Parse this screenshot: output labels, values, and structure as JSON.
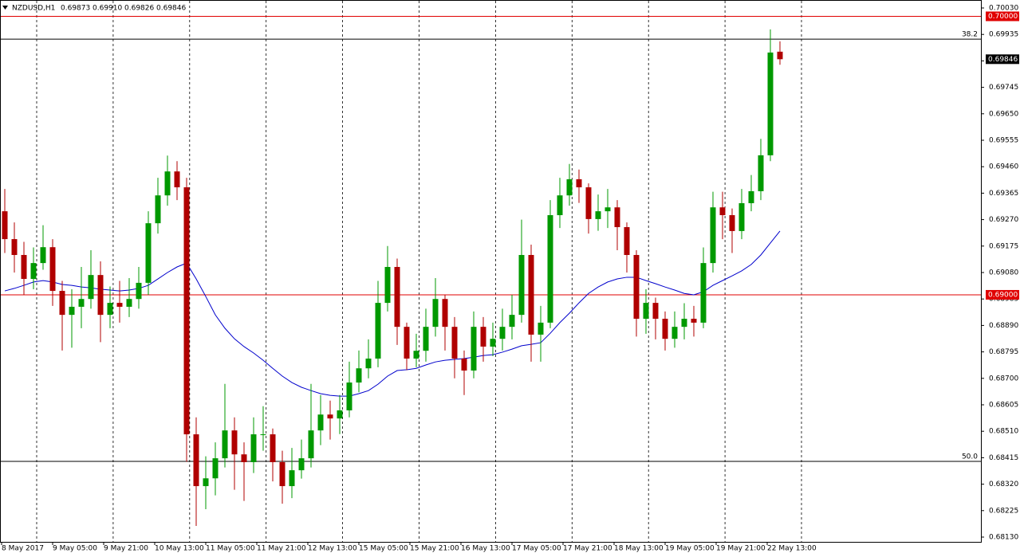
{
  "chart_data": {
    "type": "candlestick",
    "symbol": "NZDUSD,H1",
    "header_ohlc": [
      "0.69873",
      "0.69910",
      "0.69826",
      "0.69846"
    ],
    "bull_color": "#009900",
    "bear_color": "#b00000",
    "ylim": [
      0.6813,
      0.7003
    ],
    "yticks": [
      {
        "value": 0.7003,
        "label": "0.70030"
      },
      {
        "value": 0.69935,
        "label": "0.69935"
      },
      {
        "value": 0.6984,
        "label": "0.69840"
      },
      {
        "value": 0.69745,
        "label": "0.69745"
      },
      {
        "value": 0.6965,
        "label": "0.69650"
      },
      {
        "value": 0.69555,
        "label": "0.69555"
      },
      {
        "value": 0.6946,
        "label": "0.69460"
      },
      {
        "value": 0.69365,
        "label": "0.69365"
      },
      {
        "value": 0.6927,
        "label": "0.69270"
      },
      {
        "value": 0.69175,
        "label": "0.69175"
      },
      {
        "value": 0.6908,
        "label": "0.69080"
      },
      {
        "value": 0.68985,
        "label": "0.68985"
      },
      {
        "value": 0.6889,
        "label": "0.68890"
      },
      {
        "value": 0.68795,
        "label": "0.68795"
      },
      {
        "value": 0.687,
        "label": "0.68700"
      },
      {
        "value": 0.68605,
        "label": "0.68605"
      },
      {
        "value": 0.6851,
        "label": "0.68510"
      },
      {
        "value": 0.68415,
        "label": "0.68415"
      },
      {
        "value": 0.6832,
        "label": "0.68320"
      },
      {
        "value": 0.68225,
        "label": "0.68225"
      },
      {
        "value": 0.6813,
        "label": "0.68130"
      }
    ],
    "xtick_labels": [
      "8 May 2017",
      "9 May 05:00",
      "9 May 21:00",
      "10 May 13:00",
      "11 May 05:00",
      "11 May 21:00",
      "12 May 13:00",
      "15 May 05:00",
      "15 May 21:00",
      "16 May 13:00",
      "17 May 05:00",
      "17 May 21:00",
      "18 May 13:00",
      "19 May 05:00",
      "19 May 21:00",
      "22 May 13:00"
    ],
    "levels": [
      {
        "value": 0.7,
        "label": "0.70000",
        "color": "#e00000"
      },
      {
        "value": 0.69,
        "label": "0.69000",
        "color": "#e00000"
      }
    ],
    "fib_levels": [
      {
        "value": 0.69918,
        "label": "38.2"
      },
      {
        "value": 0.68402,
        "label": "50.0"
      }
    ],
    "last_price": {
      "value": 0.69846,
      "label": "0.69846"
    },
    "open": [
      0.693,
      0.692,
      0.69143,
      0.69057,
      0.69114,
      0.69171,
      0.69014,
      0.68928,
      0.68957,
      0.68985,
      0.69071,
      0.68928,
      0.68971,
      0.68957,
      0.68985,
      0.69043,
      0.69257,
      0.69357,
      0.69443,
      0.69386,
      0.68499,
      0.68313,
      0.68341,
      0.68413,
      0.68513,
      0.68427,
      0.68399,
      0.68499,
      0.68499,
      0.68399,
      0.68313,
      0.6837,
      0.68413,
      0.68513,
      0.6857,
      0.68556,
      0.68585,
      0.68685,
      0.68736,
      0.68771,
      0.68971,
      0.691,
      0.68885,
      0.68771,
      0.68799,
      0.68885,
      0.68985,
      0.68885,
      0.68771,
      0.68728,
      0.68885,
      0.68814,
      0.68842,
      0.68885,
      0.68928,
      0.69143,
      0.68857,
      0.689,
      0.69286,
      0.69357,
      0.69415,
      0.69386,
      0.69272,
      0.693,
      0.69314,
      0.69243,
      0.69143,
      0.68914,
      0.68971,
      0.68914,
      0.68842,
      0.68885,
      0.68914,
      0.689,
      0.69114,
      0.69314,
      0.69286,
      0.69229,
      0.69329,
      0.69372,
      0.69501,
      0.69873
    ],
    "high": [
      0.6938,
      0.6926,
      0.6919,
      0.6917,
      0.6925,
      0.692,
      0.6905,
      0.6902,
      0.691,
      0.6916,
      0.6912,
      0.6903,
      0.6905,
      0.6906,
      0.691,
      0.693,
      0.6942,
      0.695,
      0.6948,
      0.6942,
      0.6856,
      0.6842,
      0.6847,
      0.6868,
      0.6856,
      0.6847,
      0.6856,
      0.686,
      0.6852,
      0.6844,
      0.6845,
      0.6848,
      0.6868,
      0.6864,
      0.6862,
      0.6864,
      0.6876,
      0.688,
      0.6884,
      0.6905,
      0.69175,
      0.6913,
      0.689,
      0.6886,
      0.6895,
      0.6906,
      0.69,
      0.6892,
      0.688,
      0.6894,
      0.6892,
      0.689,
      0.6895,
      0.69,
      0.6927,
      0.6918,
      0.6896,
      0.6934,
      0.6942,
      0.6947,
      0.6945,
      0.694,
      0.6936,
      0.6938,
      0.6934,
      0.6926,
      0.6916,
      0.6902,
      0.6899,
      0.6894,
      0.6894,
      0.6897,
      0.6896,
      0.6917,
      0.6937,
      0.6937,
      0.6931,
      0.6938,
      0.6943,
      0.6956,
      0.69953,
      0.6991
    ],
    "low": [
      0.6915,
      0.6908,
      0.69,
      0.6902,
      0.6909,
      0.6896,
      0.688,
      0.6881,
      0.6888,
      0.6895,
      0.6883,
      0.6888,
      0.689,
      0.6892,
      0.6895,
      0.69,
      0.6922,
      0.6932,
      0.6934,
      0.684,
      0.6817,
      0.6823,
      0.6828,
      0.6838,
      0.683,
      0.6826,
      0.6836,
      0.6844,
      0.6833,
      0.6825,
      0.6827,
      0.6834,
      0.6838,
      0.6846,
      0.6848,
      0.685,
      0.6856,
      0.6865,
      0.687,
      0.6874,
      0.6894,
      0.6882,
      0.6873,
      0.6874,
      0.6876,
      0.6885,
      0.688,
      0.687,
      0.6864,
      0.687,
      0.6876,
      0.6878,
      0.688,
      0.6884,
      0.689,
      0.6876,
      0.6876,
      0.6888,
      0.6924,
      0.6932,
      0.6933,
      0.6922,
      0.6923,
      0.6924,
      0.6916,
      0.6908,
      0.6885,
      0.6886,
      0.6884,
      0.688,
      0.6881,
      0.6884,
      0.6885,
      0.6888,
      0.6908,
      0.692,
      0.6915,
      0.692,
      0.693,
      0.6934,
      0.6948,
      0.69826
    ],
    "close": [
      0.692,
      0.69143,
      0.69057,
      0.69114,
      0.69171,
      0.69014,
      0.68928,
      0.68957,
      0.68985,
      0.69071,
      0.68928,
      0.68971,
      0.68957,
      0.68985,
      0.69043,
      0.69257,
      0.69357,
      0.69443,
      0.69386,
      0.68499,
      0.68313,
      0.68341,
      0.68413,
      0.68513,
      0.68427,
      0.68399,
      0.68499,
      0.68499,
      0.68399,
      0.68313,
      0.6837,
      0.68413,
      0.68513,
      0.6857,
      0.68556,
      0.68585,
      0.68685,
      0.68736,
      0.68771,
      0.68971,
      0.691,
      0.68885,
      0.68771,
      0.68799,
      0.68885,
      0.68985,
      0.68885,
      0.68771,
      0.68728,
      0.68885,
      0.68814,
      0.68842,
      0.68885,
      0.68928,
      0.69143,
      0.68857,
      0.689,
      0.69286,
      0.69357,
      0.69415,
      0.69386,
      0.69272,
      0.693,
      0.69314,
      0.69243,
      0.69143,
      0.68914,
      0.68971,
      0.68914,
      0.68842,
      0.68885,
      0.68914,
      0.689,
      0.69114,
      0.69314,
      0.69286,
      0.69229,
      0.69329,
      0.69372,
      0.69501,
      0.6987,
      0.69846
    ],
    "ma": {
      "color": "#0000cc",
      "values": [
        0.69014,
        0.69023,
        0.69034,
        0.69046,
        0.69051,
        0.69046,
        0.69037,
        0.69034,
        0.69028,
        0.69025,
        0.6902,
        0.69017,
        0.69014,
        0.69017,
        0.69023,
        0.69034,
        0.69057,
        0.6908,
        0.691,
        0.69114,
        0.69057,
        0.68994,
        0.68928,
        0.6888,
        0.68842,
        0.68814,
        0.68791,
        0.68765,
        0.68736,
        0.68708,
        0.68685,
        0.68668,
        0.68656,
        0.68645,
        0.68639,
        0.68636,
        0.68636,
        0.68645,
        0.68656,
        0.68679,
        0.68708,
        0.68728,
        0.68731,
        0.68736,
        0.68748,
        0.68759,
        0.68765,
        0.68768,
        0.68771,
        0.68776,
        0.68782,
        0.68785,
        0.68794,
        0.68805,
        0.68817,
        0.68822,
        0.68828,
        0.68862,
        0.689,
        0.68934,
        0.68971,
        0.69005,
        0.69028,
        0.69046,
        0.69057,
        0.69063,
        0.69063,
        0.69051,
        0.6904,
        0.69028,
        0.69017,
        0.69005,
        0.69,
        0.69011,
        0.69034,
        0.69051,
        0.69068,
        0.69086,
        0.69109,
        0.69143,
        0.69186,
        0.69229
      ]
    }
  }
}
